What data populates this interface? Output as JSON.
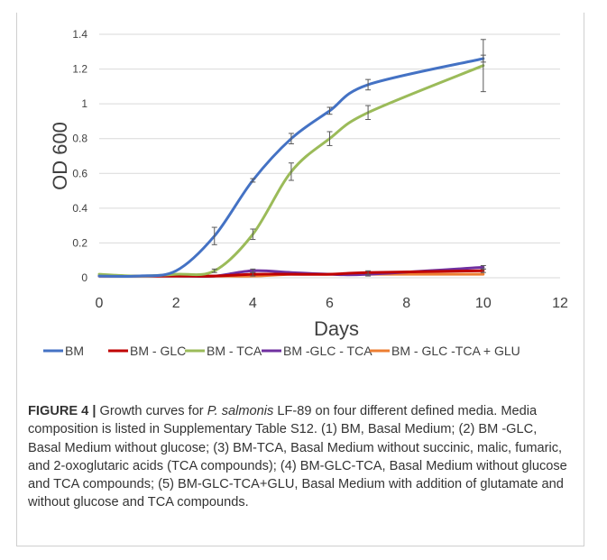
{
  "figure": {
    "label": "FIGURE 4 |",
    "caption_pre": " Growth curves for ",
    "caption_species": "P. salmonis",
    "caption_post": " LF-89 on four different defined media. Media composition is listed in Supplementary Table S12. (1) BM, Basal Medium; (2) BM -GLC, Basal Medium without glucose; (3) BM-TCA, Basal Medium without succinic, malic, fumaric, and 2-oxoglutaric acids (TCA compounds); (4) BM-GLC-TCA, Basal Medium without glucose and TCA compounds; (5) BM-GLC-TCA+GLU, Basal Medium with addition of glutamate and without glucose and TCA compounds."
  },
  "chart_data": {
    "type": "line",
    "title": "",
    "xlabel": "Days",
    "ylabel": "OD 600",
    "xlim": [
      0,
      12
    ],
    "ylim": [
      0,
      1.4
    ],
    "xticks": [
      0,
      2,
      4,
      6,
      8,
      10,
      12
    ],
    "yticks": [
      0,
      0.2,
      0.4,
      0.6,
      0.8,
      1,
      1.2,
      1.4
    ],
    "ytick_labels": [
      "0",
      "0.2",
      "0.4",
      "0.6",
      "0.8",
      "1",
      "1.2",
      "1.4"
    ],
    "grid": true,
    "legend_position": "bottom",
    "series": [
      {
        "name": "BM",
        "color": "#4472c4",
        "x": [
          0,
          1,
          2,
          3,
          4,
          5,
          6,
          7,
          10
        ],
        "y": [
          0.01,
          0.01,
          0.04,
          0.24,
          0.56,
          0.8,
          0.96,
          1.11,
          1.26
        ],
        "err": [
          0,
          0,
          0,
          0.05,
          0.01,
          0.03,
          0.02,
          0.03,
          0.02
        ]
      },
      {
        "name": "BM - GLC",
        "color": "#c00000",
        "x": [
          0,
          1,
          2,
          3,
          4,
          5,
          6,
          7,
          10
        ],
        "y": [
          0.01,
          0.01,
          0.01,
          0.01,
          0.02,
          0.02,
          0.02,
          0.03,
          0.04
        ],
        "err": [
          0,
          0,
          0,
          0,
          0.01,
          0,
          0,
          0.01,
          0.01
        ]
      },
      {
        "name": "BM - TCA",
        "color": "#9bbb59",
        "x": [
          0,
          1,
          2,
          3,
          4,
          5,
          6,
          7,
          10
        ],
        "y": [
          0.02,
          0.01,
          0.02,
          0.04,
          0.25,
          0.61,
          0.8,
          0.95,
          1.22
        ],
        "err": [
          0,
          0,
          0,
          0.01,
          0.03,
          0.05,
          0.04,
          0.04,
          0.15
        ]
      },
      {
        "name": "BM -GLC - TCA",
        "color": "#7030a0",
        "x": [
          0,
          1,
          2,
          3,
          4,
          5,
          6,
          7,
          10
        ],
        "y": [
          0.01,
          0.01,
          0.01,
          0.01,
          0.04,
          0.03,
          0.02,
          0.02,
          0.06
        ],
        "err": [
          0,
          0,
          0,
          0,
          0.01,
          0,
          0,
          0.01,
          0.01
        ]
      },
      {
        "name": "BM - GLC -TCA + GLU",
        "color": "#ed7d31",
        "x": [
          0,
          1,
          2,
          3,
          4,
          5,
          6,
          7,
          10
        ],
        "y": [
          0.01,
          0.01,
          0.01,
          0.01,
          0.01,
          0.02,
          0.02,
          0.02,
          0.02
        ],
        "err": [
          0,
          0,
          0,
          0,
          0,
          0,
          0,
          0,
          0
        ]
      }
    ]
  }
}
